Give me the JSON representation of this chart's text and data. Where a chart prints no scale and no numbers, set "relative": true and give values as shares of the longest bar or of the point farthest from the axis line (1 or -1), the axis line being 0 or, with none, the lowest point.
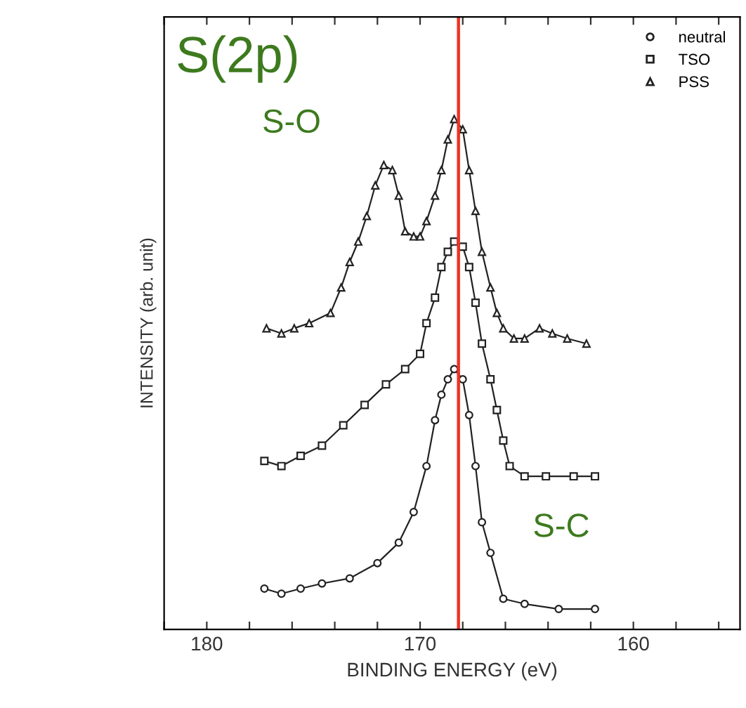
{
  "chart_data": {
    "type": "line",
    "relative": true,
    "title": "S(2p)",
    "xlabel": "BINDING ENERGY (eV)",
    "ylabel": "INTENSITY (arb. unit)",
    "xlim": [
      182,
      155
    ],
    "xticks": [
      {
        "value": 182,
        "label": null
      },
      180,
      {
        "value": 178,
        "label": null
      },
      {
        "value": 176,
        "label": null
      },
      {
        "value": 174,
        "label": null
      },
      {
        "value": 172,
        "label": null
      },
      170,
      {
        "value": 168,
        "label": null
      },
      {
        "value": 166,
        "label": null
      },
      {
        "value": 164,
        "label": null
      },
      {
        "value": 162,
        "label": null
      },
      160,
      {
        "value": 158,
        "label": null
      },
      {
        "value": 156,
        "label": null
      }
    ],
    "tick_labels": "x",
    "legend": "top right",
    "grid": false,
    "ref_lines": [
      {
        "axis": "x",
        "value": 168.2,
        "color": "#ee3322"
      }
    ],
    "annotations": [
      "S-O",
      "S-C"
    ],
    "series": [
      {
        "name": "neutral",
        "color": "#222222",
        "marker": "circle",
        "x": [
          177.3,
          176.5,
          175.6,
          174.6,
          173.3,
          172.0,
          171.0,
          170.3,
          169.7,
          169.3,
          169.0,
          168.7,
          168.4,
          168.0,
          167.7,
          167.4,
          167.1,
          166.7,
          166.1,
          165.1,
          163.5,
          161.8
        ],
        "values": [
          0.08,
          0.07,
          0.08,
          0.09,
          0.1,
          0.13,
          0.17,
          0.23,
          0.32,
          0.41,
          0.46,
          0.49,
          0.51,
          0.49,
          0.42,
          0.32,
          0.21,
          0.15,
          0.06,
          0.05,
          0.04,
          0.04
        ]
      },
      {
        "name": "TSO",
        "color": "#222222",
        "marker": "square",
        "x": [
          177.3,
          176.5,
          175.6,
          174.6,
          173.6,
          172.6,
          171.6,
          170.7,
          170.0,
          169.7,
          169.3,
          169.0,
          168.7,
          168.4,
          168.0,
          167.7,
          167.4,
          167.1,
          166.7,
          166.4,
          166.1,
          165.8,
          165.1,
          164.1,
          162.8,
          161.8
        ],
        "values": [
          0.33,
          0.32,
          0.34,
          0.36,
          0.4,
          0.44,
          0.48,
          0.51,
          0.54,
          0.6,
          0.65,
          0.71,
          0.74,
          0.76,
          0.75,
          0.71,
          0.64,
          0.56,
          0.49,
          0.43,
          0.37,
          0.32,
          0.3,
          0.3,
          0.3,
          0.3
        ]
      },
      {
        "name": "PSS",
        "color": "#222222",
        "marker": "triangle",
        "x": [
          177.2,
          176.5,
          175.9,
          175.2,
          174.2,
          173.7,
          173.3,
          172.9,
          172.5,
          172.1,
          171.7,
          171.3,
          171.0,
          170.7,
          170.3,
          170.0,
          169.7,
          169.3,
          169.0,
          168.7,
          168.4,
          168.0,
          167.7,
          167.4,
          167.1,
          166.7,
          166.4,
          166.1,
          165.6,
          165.1,
          164.4,
          163.8,
          163.1,
          162.2
        ],
        "values": [
          0.59,
          0.58,
          0.59,
          0.6,
          0.62,
          0.67,
          0.72,
          0.76,
          0.81,
          0.87,
          0.91,
          0.9,
          0.85,
          0.78,
          0.77,
          0.77,
          0.8,
          0.85,
          0.9,
          0.96,
          1.0,
          0.98,
          0.9,
          0.82,
          0.74,
          0.67,
          0.62,
          0.59,
          0.57,
          0.57,
          0.59,
          0.58,
          0.57,
          0.56
        ]
      }
    ]
  }
}
